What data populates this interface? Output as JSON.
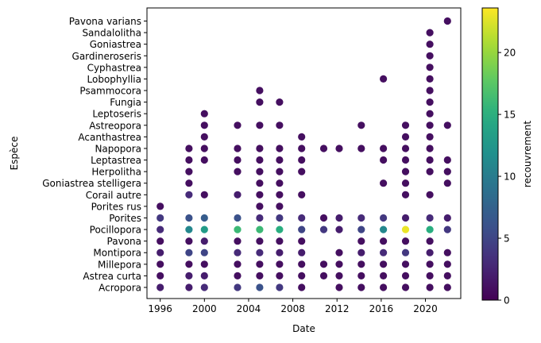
{
  "chart_data": {
    "type": "scatter",
    "title": "",
    "xlabel": "Date",
    "ylabel": "Espèce",
    "colorbar_label": "recouvrement",
    "colormap": "viridis",
    "color_range": [
      0,
      23.6
    ],
    "colorbar_ticks": [
      0,
      5,
      10,
      15,
      20
    ],
    "x_ticks": [
      1996,
      2000,
      2004,
      2008,
      2012,
      2016,
      2020
    ],
    "xlim": [
      1994.8,
      2023.2
    ],
    "species": [
      "Acropora",
      "Astrea curta",
      "Millepora",
      "Montipora",
      "Pavona",
      "Pocillopora",
      "Porites",
      "Porites rus",
      "Corail autre",
      "Goniastrea stelligera",
      "Herpolitha",
      "Leptastrea",
      "Napopora",
      "Acanthastrea",
      "Astreopora",
      "Leptoseris",
      "Fungia",
      "Psammocora",
      "Lobophyllia",
      "Cyphastrea",
      "Gardineroseris",
      "Goniastrea",
      "Sandalolitha",
      "Pavona varians"
    ],
    "points": [
      {
        "date": 1996,
        "species": "Acropora",
        "cover": 2
      },
      {
        "date": 1998.6,
        "species": "Acropora",
        "cover": 2
      },
      {
        "date": 2000,
        "species": "Acropora",
        "cover": 3
      },
      {
        "date": 2003,
        "species": "Acropora",
        "cover": 4
      },
      {
        "date": 2005,
        "species": "Acropora",
        "cover": 6
      },
      {
        "date": 2006.8,
        "species": "Acropora",
        "cover": 4
      },
      {
        "date": 2008.8,
        "species": "Acropora",
        "cover": 1
      },
      {
        "date": 2012.2,
        "species": "Acropora",
        "cover": 1
      },
      {
        "date": 2014.2,
        "species": "Acropora",
        "cover": 1
      },
      {
        "date": 2016.2,
        "species": "Acropora",
        "cover": 1
      },
      {
        "date": 2018.2,
        "species": "Acropora",
        "cover": 1
      },
      {
        "date": 2020.4,
        "species": "Acropora",
        "cover": 1
      },
      {
        "date": 2022,
        "species": "Acropora",
        "cover": 1
      },
      {
        "date": 1996,
        "species": "Astrea curta",
        "cover": 1
      },
      {
        "date": 1998.6,
        "species": "Astrea curta",
        "cover": 2
      },
      {
        "date": 2000,
        "species": "Astrea curta",
        "cover": 2
      },
      {
        "date": 2003,
        "species": "Astrea curta",
        "cover": 1
      },
      {
        "date": 2005,
        "species": "Astrea curta",
        "cover": 1
      },
      {
        "date": 2006.8,
        "species": "Astrea curta",
        "cover": 1
      },
      {
        "date": 2008.8,
        "species": "Astrea curta",
        "cover": 1
      },
      {
        "date": 2010.8,
        "species": "Astrea curta",
        "cover": 1
      },
      {
        "date": 2012.2,
        "species": "Astrea curta",
        "cover": 1
      },
      {
        "date": 2014.2,
        "species": "Astrea curta",
        "cover": 1
      },
      {
        "date": 2016.2,
        "species": "Astrea curta",
        "cover": 1
      },
      {
        "date": 2018.2,
        "species": "Astrea curta",
        "cover": 1
      },
      {
        "date": 2020.4,
        "species": "Astrea curta",
        "cover": 1
      },
      {
        "date": 2022,
        "species": "Astrea curta",
        "cover": 1
      },
      {
        "date": 1996,
        "species": "Millepora",
        "cover": 1
      },
      {
        "date": 1998.6,
        "species": "Millepora",
        "cover": 1
      },
      {
        "date": 2000,
        "species": "Millepora",
        "cover": 1
      },
      {
        "date": 2003,
        "species": "Millepora",
        "cover": 1
      },
      {
        "date": 2005,
        "species": "Millepora",
        "cover": 1
      },
      {
        "date": 2006.8,
        "species": "Millepora",
        "cover": 1
      },
      {
        "date": 2008.8,
        "species": "Millepora",
        "cover": 1
      },
      {
        "date": 2010.8,
        "species": "Millepora",
        "cover": 1
      },
      {
        "date": 2012.2,
        "species": "Millepora",
        "cover": 1
      },
      {
        "date": 2014.2,
        "species": "Millepora",
        "cover": 1
      },
      {
        "date": 2016.2,
        "species": "Millepora",
        "cover": 1
      },
      {
        "date": 2018.2,
        "species": "Millepora",
        "cover": 1
      },
      {
        "date": 2020.4,
        "species": "Millepora",
        "cover": 1
      },
      {
        "date": 2022,
        "species": "Millepora",
        "cover": 1
      },
      {
        "date": 1996,
        "species": "Montipora",
        "cover": 2
      },
      {
        "date": 1998.6,
        "species": "Montipora",
        "cover": 5
      },
      {
        "date": 2000,
        "species": "Montipora",
        "cover": 5
      },
      {
        "date": 2003,
        "species": "Montipora",
        "cover": 3
      },
      {
        "date": 2005,
        "species": "Montipora",
        "cover": 3
      },
      {
        "date": 2006.8,
        "species": "Montipora",
        "cover": 2
      },
      {
        "date": 2008.8,
        "species": "Montipora",
        "cover": 2
      },
      {
        "date": 2012.2,
        "species": "Montipora",
        "cover": 1
      },
      {
        "date": 2014.2,
        "species": "Montipora",
        "cover": 2
      },
      {
        "date": 2016.2,
        "species": "Montipora",
        "cover": 3
      },
      {
        "date": 2018.2,
        "species": "Montipora",
        "cover": 4
      },
      {
        "date": 2020.4,
        "species": "Montipora",
        "cover": 2
      },
      {
        "date": 2022,
        "species": "Montipora",
        "cover": 1
      },
      {
        "date": 1996,
        "species": "Pavona",
        "cover": 1
      },
      {
        "date": 1998.6,
        "species": "Pavona",
        "cover": 1
      },
      {
        "date": 2000,
        "species": "Pavona",
        "cover": 2
      },
      {
        "date": 2003,
        "species": "Pavona",
        "cover": 1
      },
      {
        "date": 2005,
        "species": "Pavona",
        "cover": 1
      },
      {
        "date": 2006.8,
        "species": "Pavona",
        "cover": 1
      },
      {
        "date": 2008.8,
        "species": "Pavona",
        "cover": 1
      },
      {
        "date": 2014.2,
        "species": "Pavona",
        "cover": 1
      },
      {
        "date": 2016.2,
        "species": "Pavona",
        "cover": 1
      },
      {
        "date": 2018.2,
        "species": "Pavona",
        "cover": 1
      },
      {
        "date": 2020.4,
        "species": "Pavona",
        "cover": 1
      },
      {
        "date": 1996,
        "species": "Pocillopora",
        "cover": 3
      },
      {
        "date": 1998.6,
        "species": "Pocillopora",
        "cover": 11
      },
      {
        "date": 2000,
        "species": "Pocillopora",
        "cover": 13
      },
      {
        "date": 2003,
        "species": "Pocillopora",
        "cover": 16
      },
      {
        "date": 2005,
        "species": "Pocillopora",
        "cover": 16
      },
      {
        "date": 2006.8,
        "species": "Pocillopora",
        "cover": 15
      },
      {
        "date": 2008.8,
        "species": "Pocillopora",
        "cover": 5
      },
      {
        "date": 2010.8,
        "species": "Pocillopora",
        "cover": 4
      },
      {
        "date": 2012.2,
        "species": "Pocillopora",
        "cover": 2
      },
      {
        "date": 2014.2,
        "species": "Pocillopora",
        "cover": 5
      },
      {
        "date": 2016.2,
        "species": "Pocillopora",
        "cover": 11
      },
      {
        "date": 2018.2,
        "species": "Pocillopora",
        "cover": 23
      },
      {
        "date": 2020.4,
        "species": "Pocillopora",
        "cover": 15
      },
      {
        "date": 2022,
        "species": "Pocillopora",
        "cover": 4
      },
      {
        "date": 1996,
        "species": "Porites",
        "cover": 4
      },
      {
        "date": 1998.6,
        "species": "Porites",
        "cover": 6
      },
      {
        "date": 2000,
        "species": "Porites",
        "cover": 7
      },
      {
        "date": 2003,
        "species": "Porites",
        "cover": 6
      },
      {
        "date": 2005,
        "species": "Porites",
        "cover": 3
      },
      {
        "date": 2006.8,
        "species": "Porites",
        "cover": 4
      },
      {
        "date": 2008.8,
        "species": "Porites",
        "cover": 3
      },
      {
        "date": 2010.8,
        "species": "Porites",
        "cover": 1
      },
      {
        "date": 2012.2,
        "species": "Porites",
        "cover": 2
      },
      {
        "date": 2014.2,
        "species": "Porites",
        "cover": 3
      },
      {
        "date": 2016.2,
        "species": "Porites",
        "cover": 4
      },
      {
        "date": 2018.2,
        "species": "Porites",
        "cover": 2
      },
      {
        "date": 2020.4,
        "species": "Porites",
        "cover": 3
      },
      {
        "date": 2022,
        "species": "Porites",
        "cover": 2
      },
      {
        "date": 1996,
        "species": "Porites rus",
        "cover": 1
      },
      {
        "date": 2005,
        "species": "Porites rus",
        "cover": 1
      },
      {
        "date": 2006.8,
        "species": "Porites rus",
        "cover": 1
      },
      {
        "date": 1998.6,
        "species": "Corail autre",
        "cover": 3
      },
      {
        "date": 2000,
        "species": "Corail autre",
        "cover": 1
      },
      {
        "date": 2003,
        "species": "Corail autre",
        "cover": 2
      },
      {
        "date": 2005,
        "species": "Corail autre",
        "cover": 1
      },
      {
        "date": 2006.8,
        "species": "Corail autre",
        "cover": 1
      },
      {
        "date": 2008.8,
        "species": "Corail autre",
        "cover": 1
      },
      {
        "date": 2018.2,
        "species": "Corail autre",
        "cover": 1
      },
      {
        "date": 2020.4,
        "species": "Corail autre",
        "cover": 1
      },
      {
        "date": 1998.6,
        "species": "Goniastrea stelligera",
        "cover": 1
      },
      {
        "date": 2005,
        "species": "Goniastrea stelligera",
        "cover": 1
      },
      {
        "date": 2006.8,
        "species": "Goniastrea stelligera",
        "cover": 1
      },
      {
        "date": 2016.2,
        "species": "Goniastrea stelligera",
        "cover": 1
      },
      {
        "date": 2018.2,
        "species": "Goniastrea stelligera",
        "cover": 1
      },
      {
        "date": 2022,
        "species": "Goniastrea stelligera",
        "cover": 1
      },
      {
        "date": 1998.6,
        "species": "Herpolitha",
        "cover": 1
      },
      {
        "date": 2003,
        "species": "Herpolitha",
        "cover": 1
      },
      {
        "date": 2005,
        "species": "Herpolitha",
        "cover": 1
      },
      {
        "date": 2006.8,
        "species": "Herpolitha",
        "cover": 1
      },
      {
        "date": 2008.8,
        "species": "Herpolitha",
        "cover": 1
      },
      {
        "date": 2018.2,
        "species": "Herpolitha",
        "cover": 1
      },
      {
        "date": 2020.4,
        "species": "Herpolitha",
        "cover": 1
      },
      {
        "date": 2022,
        "species": "Herpolitha",
        "cover": 1
      },
      {
        "date": 1998.6,
        "species": "Leptastrea",
        "cover": 1
      },
      {
        "date": 2000,
        "species": "Leptastrea",
        "cover": 1
      },
      {
        "date": 2003,
        "species": "Leptastrea",
        "cover": 1
      },
      {
        "date": 2005,
        "species": "Leptastrea",
        "cover": 1
      },
      {
        "date": 2006.8,
        "species": "Leptastrea",
        "cover": 1
      },
      {
        "date": 2008.8,
        "species": "Leptastrea",
        "cover": 1
      },
      {
        "date": 2016.2,
        "species": "Leptastrea",
        "cover": 1
      },
      {
        "date": 2018.2,
        "species": "Leptastrea",
        "cover": 1
      },
      {
        "date": 2020.4,
        "species": "Leptastrea",
        "cover": 1
      },
      {
        "date": 2022,
        "species": "Leptastrea",
        "cover": 1
      },
      {
        "date": 1998.6,
        "species": "Napopora",
        "cover": 1
      },
      {
        "date": 2000,
        "species": "Napopora",
        "cover": 1
      },
      {
        "date": 2003,
        "species": "Napopora",
        "cover": 1
      },
      {
        "date": 2005,
        "species": "Napopora",
        "cover": 1
      },
      {
        "date": 2006.8,
        "species": "Napopora",
        "cover": 1
      },
      {
        "date": 2008.8,
        "species": "Napopora",
        "cover": 1
      },
      {
        "date": 2010.8,
        "species": "Napopora",
        "cover": 1
      },
      {
        "date": 2012.2,
        "species": "Napopora",
        "cover": 1
      },
      {
        "date": 2014.2,
        "species": "Napopora",
        "cover": 1
      },
      {
        "date": 2016.2,
        "species": "Napopora",
        "cover": 1
      },
      {
        "date": 2018.2,
        "species": "Napopora",
        "cover": 1
      },
      {
        "date": 2020.4,
        "species": "Napopora",
        "cover": 1
      },
      {
        "date": 2000,
        "species": "Acanthastrea",
        "cover": 1
      },
      {
        "date": 2008.8,
        "species": "Acanthastrea",
        "cover": 1
      },
      {
        "date": 2018.2,
        "species": "Acanthastrea",
        "cover": 1
      },
      {
        "date": 2020.4,
        "species": "Acanthastrea",
        "cover": 1
      },
      {
        "date": 2000,
        "species": "Astreopora",
        "cover": 1
      },
      {
        "date": 2003,
        "species": "Astreopora",
        "cover": 1
      },
      {
        "date": 2005,
        "species": "Astreopora",
        "cover": 1
      },
      {
        "date": 2006.8,
        "species": "Astreopora",
        "cover": 1
      },
      {
        "date": 2014.2,
        "species": "Astreopora",
        "cover": 1
      },
      {
        "date": 2018.2,
        "species": "Astreopora",
        "cover": 1
      },
      {
        "date": 2020.4,
        "species": "Astreopora",
        "cover": 1
      },
      {
        "date": 2022,
        "species": "Astreopora",
        "cover": 1
      },
      {
        "date": 2000,
        "species": "Leptoseris",
        "cover": 1
      },
      {
        "date": 2020.4,
        "species": "Leptoseris",
        "cover": 1
      },
      {
        "date": 2005,
        "species": "Fungia",
        "cover": 1
      },
      {
        "date": 2006.8,
        "species": "Fungia",
        "cover": 1
      },
      {
        "date": 2020.4,
        "species": "Fungia",
        "cover": 1
      },
      {
        "date": 2005,
        "species": "Psammocora",
        "cover": 1
      },
      {
        "date": 2020.4,
        "species": "Psammocora",
        "cover": 1
      },
      {
        "date": 2016.2,
        "species": "Lobophyllia",
        "cover": 1
      },
      {
        "date": 2020.4,
        "species": "Lobophyllia",
        "cover": 1
      },
      {
        "date": 2020.4,
        "species": "Cyphastrea",
        "cover": 1
      },
      {
        "date": 2020.4,
        "species": "Gardineroseris",
        "cover": 1
      },
      {
        "date": 2020.4,
        "species": "Goniastrea",
        "cover": 1
      },
      {
        "date": 2020.4,
        "species": "Sandalolitha",
        "cover": 1
      },
      {
        "date": 2022,
        "species": "Pavona varians",
        "cover": 1
      }
    ]
  }
}
